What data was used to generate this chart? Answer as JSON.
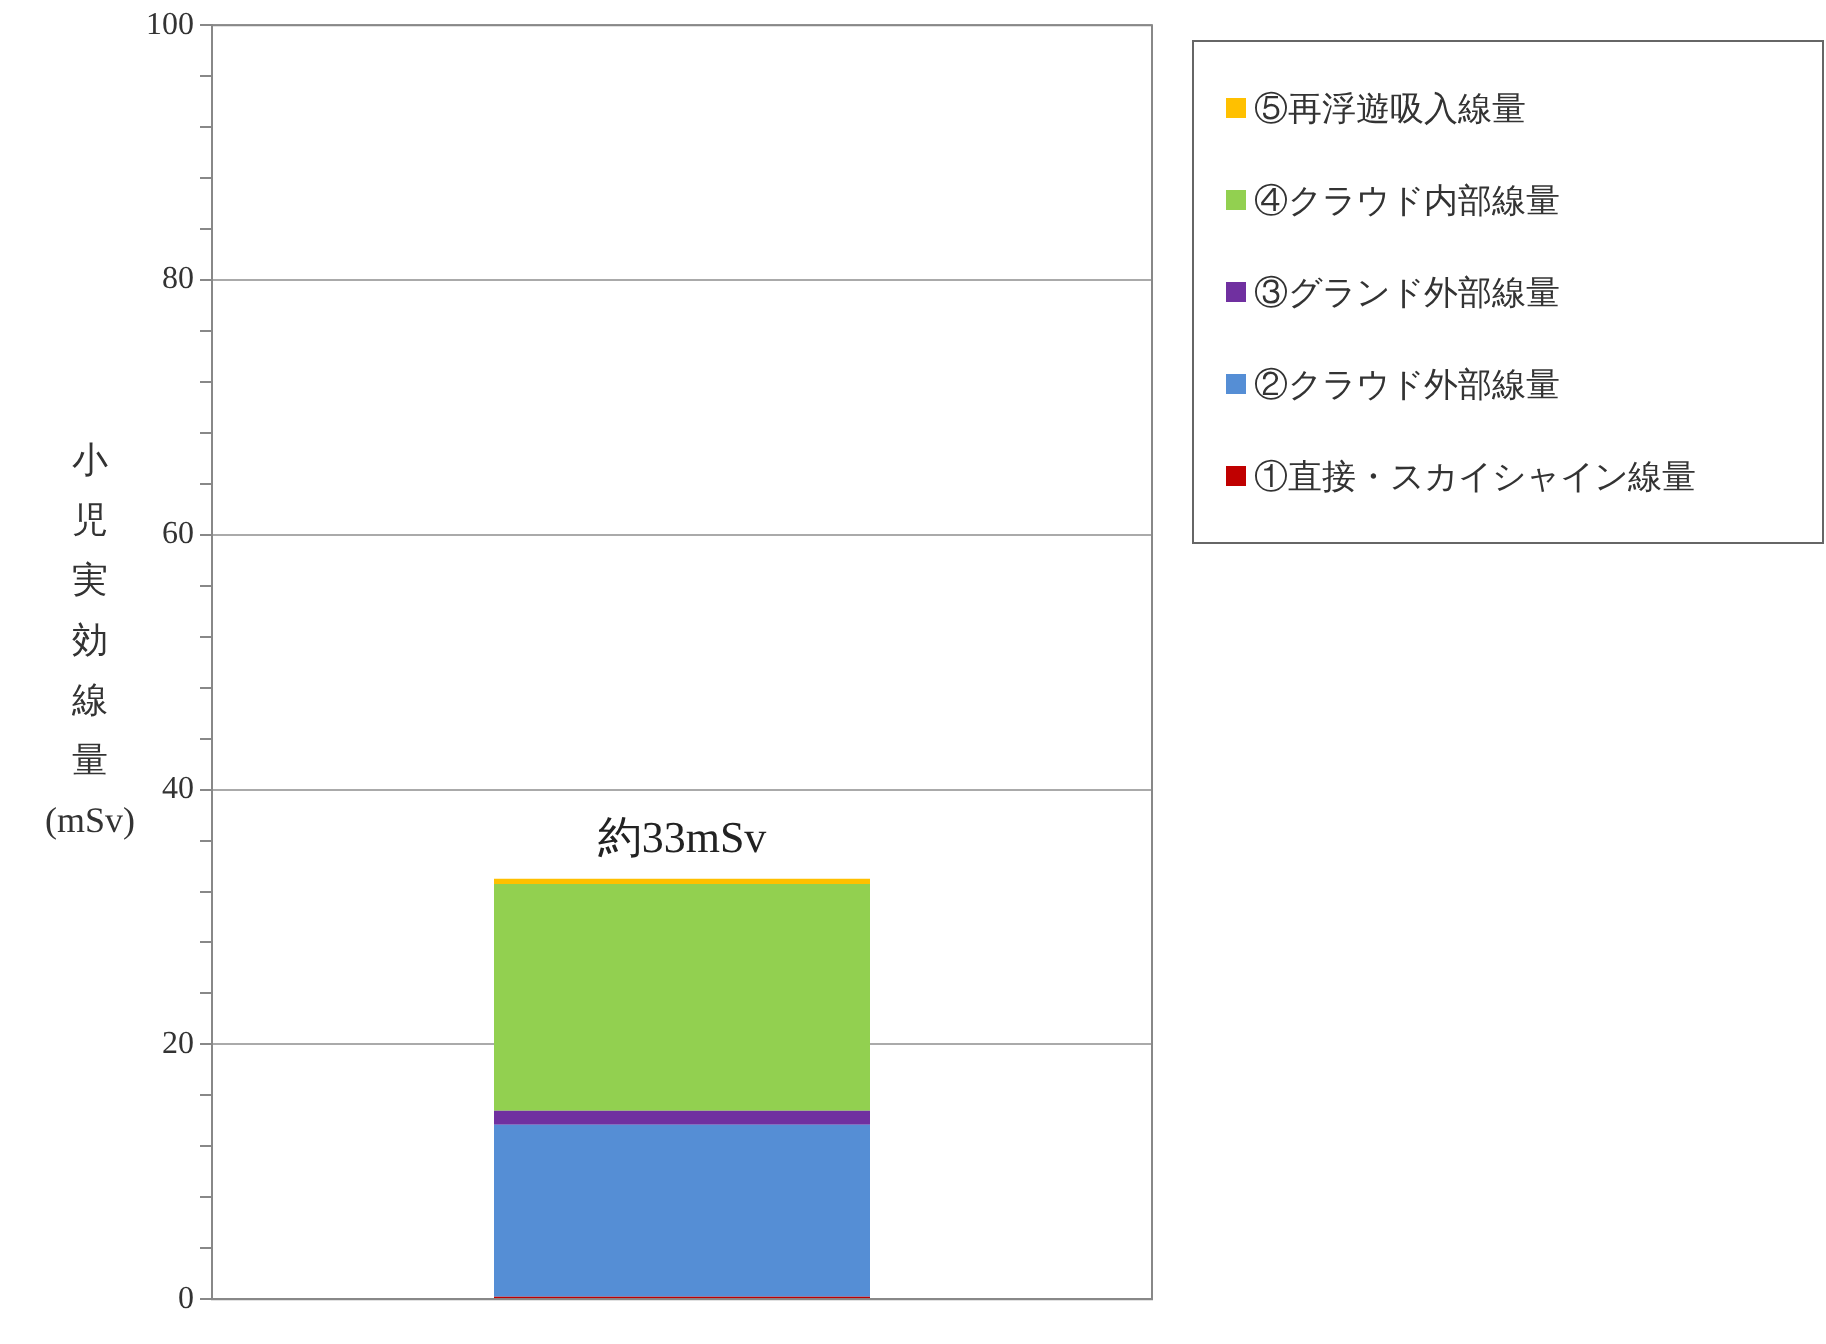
{
  "chart_data": {
    "type": "bar",
    "stacked": true,
    "ylabel": "小児実効線量(mSv)",
    "categories": [
      null
    ],
    "series": [
      {
        "name": "①直接・スカイシャイン線量",
        "color": "#c00000",
        "values": [
          0.2
        ]
      },
      {
        "name": "②クラウド外部線量",
        "color": "#558ed5",
        "values": [
          13.5
        ]
      },
      {
        "name": "③グランド外部線量",
        "color": "#7030a0",
        "values": [
          1.1
        ]
      },
      {
        "name": "④クラウド内部線量",
        "color": "#92d050",
        "values": [
          17.8
        ]
      },
      {
        "name": "⑤再浮遊吸入線量",
        "color": "#ffc000",
        "values": [
          0.4
        ]
      }
    ],
    "ylim": [
      0,
      100
    ],
    "yticks": [
      0,
      {
        "value": 4,
        "label": null
      },
      {
        "value": 8,
        "label": null
      },
      {
        "value": 12,
        "label": null
      },
      {
        "value": 16,
        "label": null
      },
      20,
      {
        "value": 24,
        "label": null
      },
      {
        "value": 28,
        "label": null
      },
      {
        "value": 32,
        "label": null
      },
      {
        "value": 36,
        "label": null
      },
      40,
      {
        "value": 44,
        "label": null
      },
      {
        "value": 48,
        "label": null
      },
      {
        "value": 52,
        "label": null
      },
      {
        "value": 56,
        "label": null
      },
      60,
      {
        "value": 64,
        "label": null
      },
      {
        "value": 68,
        "label": null
      },
      {
        "value": 72,
        "label": null
      },
      {
        "value": 76,
        "label": null
      },
      80,
      {
        "value": 84,
        "label": null
      },
      {
        "value": 88,
        "label": null
      },
      {
        "value": 92,
        "label": null
      },
      {
        "value": 96,
        "label": null
      },
      100
    ],
    "grid": "y",
    "legend": "right",
    "annotations": [
      {
        "text": "約33mSv",
        "y": 33
      }
    ]
  }
}
